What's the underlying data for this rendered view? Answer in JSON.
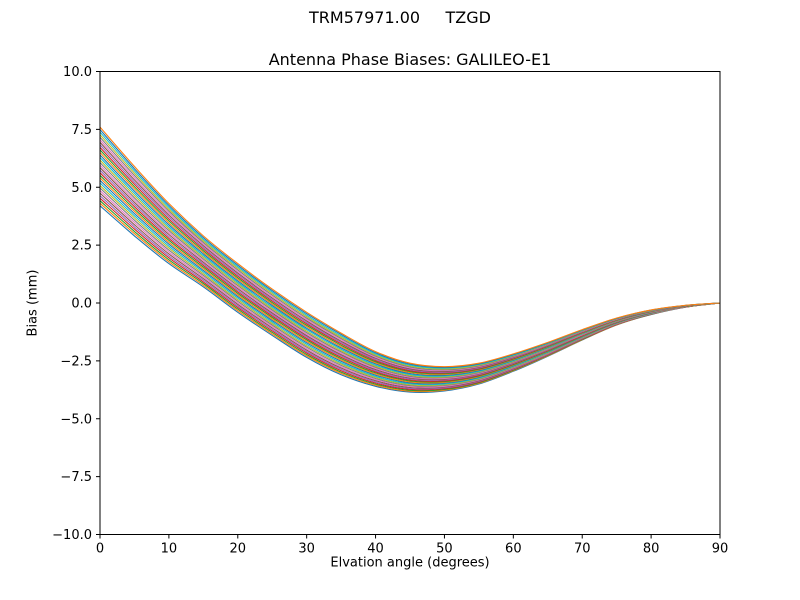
{
  "figure": {
    "suptitle": "TRM57971.00     TZGD",
    "title": "Antenna Phase Biases: GALILEO-E1",
    "xlabel": "Elvation angle (degrees)",
    "ylabel": "Bias (mm)"
  },
  "chart_data": {
    "type": "line",
    "suptitle": "TRM57971.00     TZGD",
    "title": "Antenna Phase Biases: GALILEO-E1",
    "xlabel": "Elvation angle (degrees)",
    "ylabel": "Bias (mm)",
    "xlim": [
      0,
      90
    ],
    "ylim": [
      -10,
      10
    ],
    "xticks": [
      0,
      10,
      20,
      30,
      40,
      50,
      60,
      70,
      80,
      90
    ],
    "xtick_labels": [
      "0",
      "10",
      "20",
      "30",
      "40",
      "50",
      "60",
      "70",
      "80",
      "90"
    ],
    "yticks": [
      10,
      7.5,
      5,
      2.5,
      0,
      -2.5,
      -5,
      -7.5,
      -10
    ],
    "ytick_labels": [
      "10.0",
      "7.5",
      "5.0",
      "2.5",
      "0.0",
      "−2.5",
      "−5.0",
      "−7.5",
      "−10.0"
    ],
    "grid": false,
    "legend": "none",
    "x": [
      0,
      5,
      10,
      15,
      20,
      25,
      30,
      35,
      40,
      45,
      50,
      55,
      60,
      65,
      70,
      75,
      80,
      85,
      90
    ],
    "series_band": {
      "description": "Bundle of overlapping antenna phase-bias curves, one per satellite, spanning between the two envelopes; all converge to 0 mm at 90 degrees elevation",
      "count": 32,
      "envelope_top": [
        7.6,
        5.9,
        4.3,
        2.9,
        1.7,
        0.6,
        -0.4,
        -1.3,
        -2.1,
        -2.6,
        -2.75,
        -2.6,
        -2.2,
        -1.7,
        -1.15,
        -0.65,
        -0.3,
        -0.1,
        0.0
      ],
      "envelope_bottom": [
        4.2,
        2.9,
        1.7,
        0.7,
        -0.4,
        -1.4,
        -2.35,
        -3.1,
        -3.6,
        -3.85,
        -3.8,
        -3.5,
        -2.95,
        -2.3,
        -1.6,
        -0.95,
        -0.5,
        -0.18,
        0.0
      ]
    },
    "palette": [
      "#1f77b4",
      "#ff7f0e",
      "#2ca02c",
      "#d62728",
      "#9467bd",
      "#8c564b",
      "#e377c2",
      "#7f7f7f",
      "#bcbd22",
      "#17becf"
    ],
    "axis_color": "#000000",
    "background": "#ffffff"
  }
}
